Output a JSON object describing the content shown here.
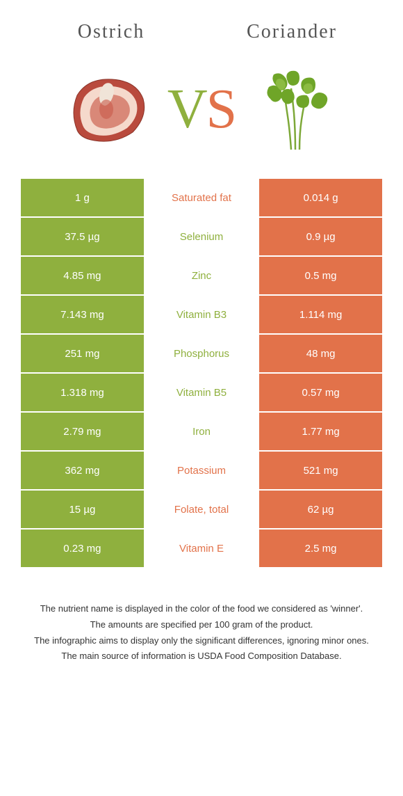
{
  "header": {
    "left_title": "Ostrich",
    "right_title": "Coriander",
    "vs_v": "V",
    "vs_s": "S"
  },
  "colors": {
    "green": "#8fb03e",
    "orange": "#e2724a",
    "title_text": "#555555",
    "footnote_text": "#333333",
    "background": "#ffffff"
  },
  "typography": {
    "title_fontsize": 28,
    "title_letterspacing": 2,
    "vs_fontsize": 80,
    "cell_fontsize": 15,
    "footnote_fontsize": 13
  },
  "rows": [
    {
      "left": "1 g",
      "name": "Saturated fat",
      "right": "0.014 g",
      "winner": "right"
    },
    {
      "left": "37.5 µg",
      "name": "Selenium",
      "right": "0.9 µg",
      "winner": "left"
    },
    {
      "left": "4.85 mg",
      "name": "Zinc",
      "right": "0.5 mg",
      "winner": "left"
    },
    {
      "left": "7.143 mg",
      "name": "Vitamin B3",
      "right": "1.114 mg",
      "winner": "left"
    },
    {
      "left": "251 mg",
      "name": "Phosphorus",
      "right": "48 mg",
      "winner": "left"
    },
    {
      "left": "1.318 mg",
      "name": "Vitamin B5",
      "right": "0.57 mg",
      "winner": "left"
    },
    {
      "left": "2.79 mg",
      "name": "Iron",
      "right": "1.77 mg",
      "winner": "left"
    },
    {
      "left": "362 mg",
      "name": "Potassium",
      "right": "521 mg",
      "winner": "right"
    },
    {
      "left": "15 µg",
      "name": "Folate, total",
      "right": "62 µg",
      "winner": "right"
    },
    {
      "left": "0.23 mg",
      "name": "Vitamin E",
      "right": "2.5 mg",
      "winner": "right"
    }
  ],
  "footnotes": [
    "The nutrient name is displayed in the color of the food we considered as 'winner'.",
    "The amounts are specified per 100 gram of the product.",
    "The infographic aims to display only the significant differences, ignoring minor ones.",
    "The main source of information is USDA Food Composition Database."
  ]
}
